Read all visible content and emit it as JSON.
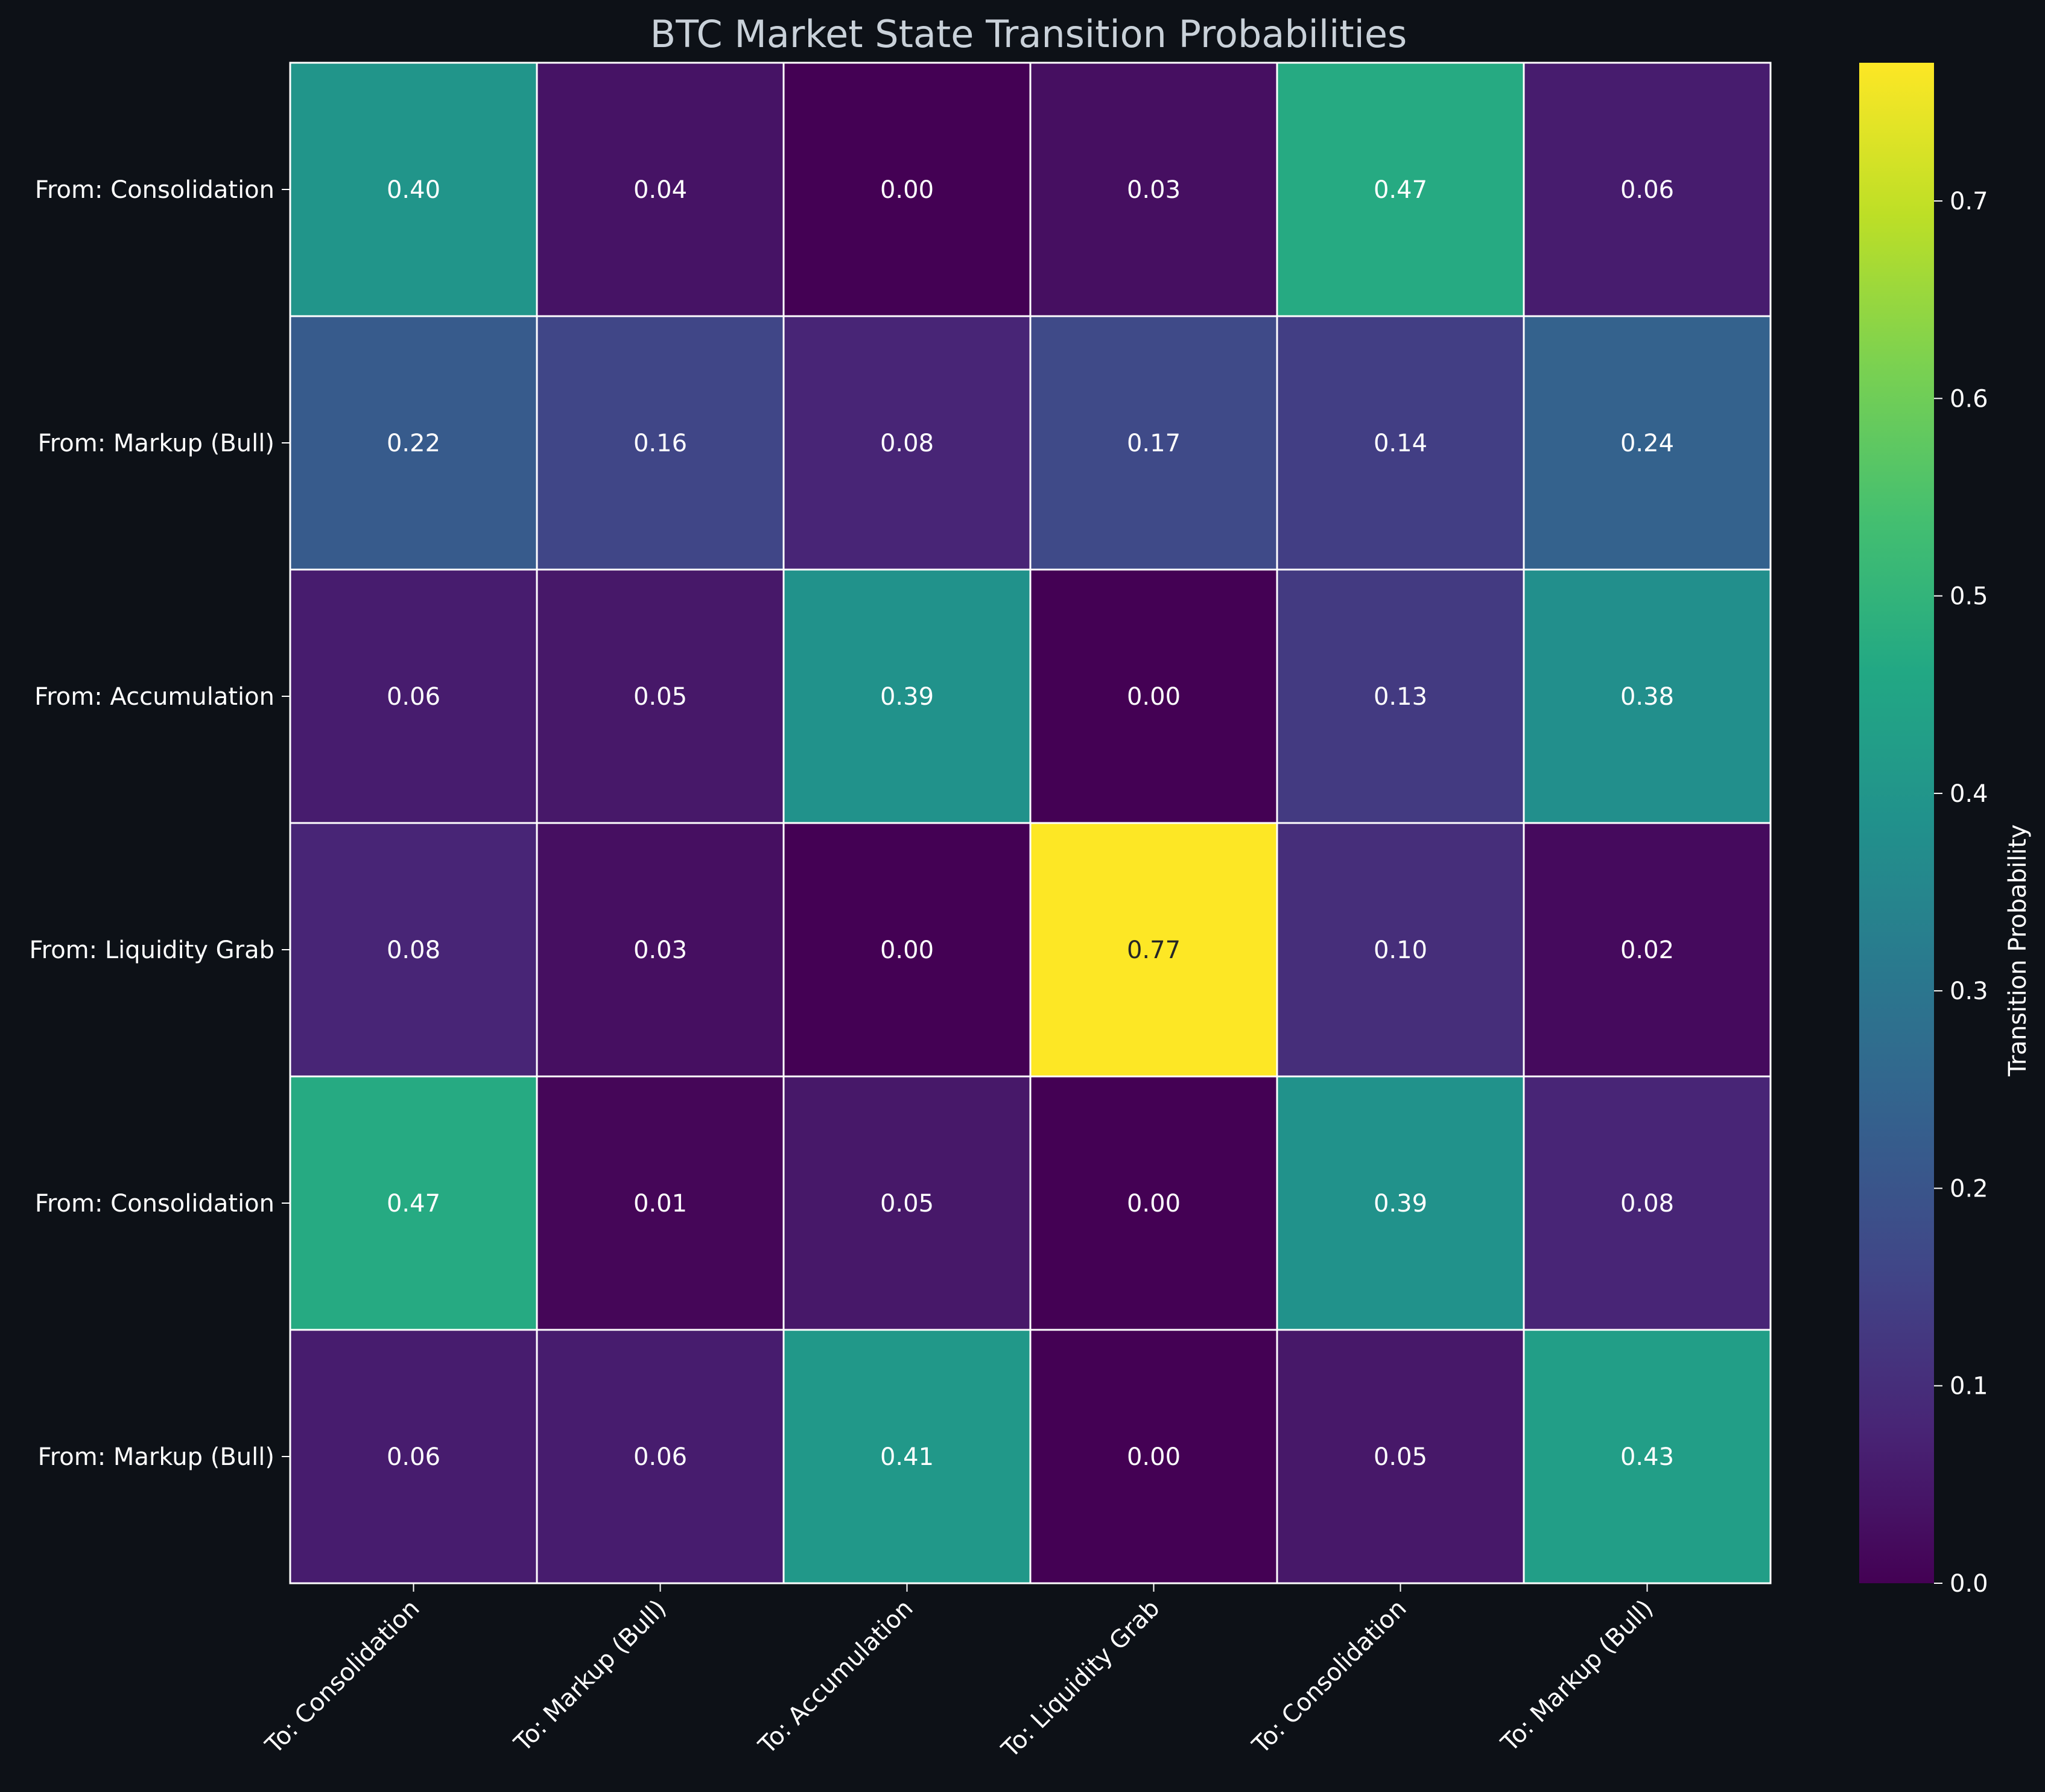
{
  "chart_data": {
    "type": "heatmap",
    "title": "BTC Market State Transition Probabilities",
    "row_labels": [
      "From: Consolidation",
      "From: Markup (Bull)",
      "From: Accumulation",
      "From: Liquidity Grab",
      "From: Consolidation",
      "From: Markup (Bull)"
    ],
    "col_labels": [
      "To: Consolidation",
      "To: Markup (Bull)",
      "To: Accumulation",
      "To: Liquidity Grab",
      "To: Consolidation",
      "To: Markup (Bull)"
    ],
    "values": [
      [
        0.4,
        0.04,
        0.0,
        0.03,
        0.47,
        0.06
      ],
      [
        0.22,
        0.16,
        0.08,
        0.17,
        0.14,
        0.24
      ],
      [
        0.06,
        0.05,
        0.39,
        0.0,
        0.13,
        0.38
      ],
      [
        0.08,
        0.03,
        0.0,
        0.77,
        0.1,
        0.02
      ],
      [
        0.47,
        0.01,
        0.05,
        0.0,
        0.39,
        0.08
      ],
      [
        0.06,
        0.06,
        0.41,
        0.0,
        0.05,
        0.43
      ]
    ],
    "value_format": "0.00",
    "colormap": "viridis",
    "vmin": 0.0,
    "vmax": 0.77,
    "colorbar": {
      "label": "Transition Probability",
      "ticks": [
        "0.0",
        "0.1",
        "0.2",
        "0.3",
        "0.4",
        "0.5",
        "0.6",
        "0.7"
      ]
    },
    "colors": {
      "background": "#0d1117",
      "title": "#c9d1d9",
      "text": "#ffffff",
      "cell_border": "#ffffff"
    }
  }
}
